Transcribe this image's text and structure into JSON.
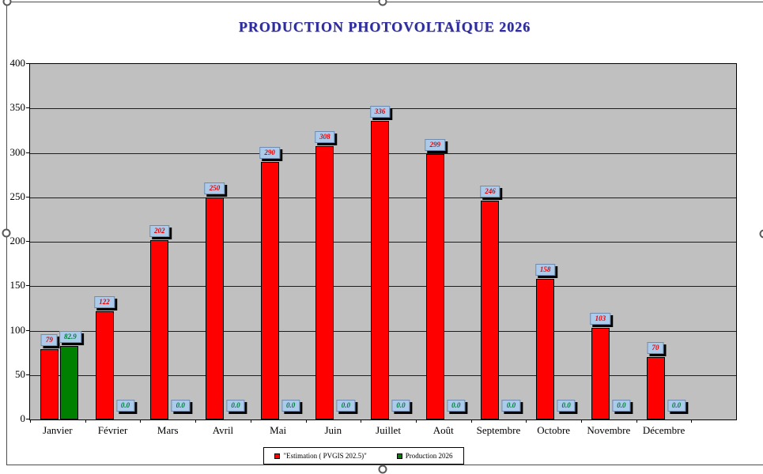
{
  "title": "PRODUCTION PHOTOVOLTAÏQUE 2026",
  "colors": {
    "plot_background": "#c0c0c0",
    "estimation_bar": "#ff0000",
    "production_bar": "#008000",
    "title_text": "#2d2d9e",
    "label_box_background": "#accae9",
    "label_box_border": "#6f8cb0",
    "estimation_label_text": "#e60000",
    "production_label_text": "#007a3c"
  },
  "chart_data": {
    "type": "bar",
    "title": "PRODUCTION PHOTOVOLTAÏQUE 2026",
    "categories": [
      "Janvier",
      "Février",
      "Mars",
      "Avril",
      "Mai",
      "Juin",
      "Juillet",
      "Août",
      "Septembre",
      "Octobre",
      "Novembre",
      "Décembre"
    ],
    "series": [
      {
        "name": "\"Estimation ( PVGIS 202.5)\"",
        "color": "#ff0000",
        "values": [
          79,
          122,
          202,
          250,
          290,
          308,
          336,
          299,
          246,
          158,
          103,
          70
        ],
        "labels": [
          "79",
          "122",
          "202",
          "250",
          "290",
          "308",
          "336",
          "299",
          "246",
          "158",
          "103",
          "70"
        ],
        "label_color": "#e60000"
      },
      {
        "name": "Production 2026",
        "color": "#008000",
        "values": [
          82.9,
          0,
          0,
          0,
          0,
          0,
          0,
          0,
          0,
          0,
          0,
          0
        ],
        "labels": [
          "82.9",
          "0.0",
          "0.0",
          "0.0",
          "0.0",
          "0.0",
          "0.0",
          "0.0",
          "0.0",
          "0.0",
          "0.0",
          "0.0"
        ],
        "label_color": "#007a3c"
      }
    ],
    "xlabel": "",
    "ylabel": "",
    "ylim": [
      0,
      400
    ],
    "ytick_step": 50,
    "yticks": [
      "0",
      "50",
      "100",
      "150",
      "200",
      "250",
      "300",
      "350",
      "400"
    ],
    "grid": true,
    "legend_position": "bottom"
  }
}
